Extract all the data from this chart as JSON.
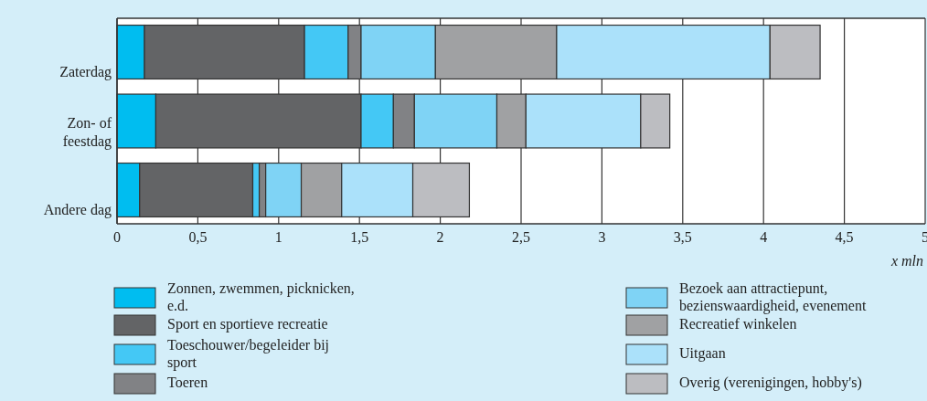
{
  "chart_data": {
    "type": "bar",
    "orientation": "horizontal",
    "stacked": true,
    "categories": [
      "Zaterdag",
      "Zon- of feestdag",
      "Andere dag"
    ],
    "xlabel": "x mln",
    "xlim": [
      0,
      5
    ],
    "xticks": [
      0,
      {
        "value": 0.5,
        "label": "0,5"
      },
      1,
      {
        "value": 1.5,
        "label": "1,5"
      },
      2,
      {
        "value": 2.5,
        "label": "2,5"
      },
      3,
      {
        "value": 3.5,
        "label": "3,5"
      },
      4,
      {
        "value": 4.5,
        "label": "4,5"
      },
      5
    ],
    "grid": "x",
    "legend": "bottom",
    "series": [
      {
        "name": "Zonnen, zwemmen, picknicken, e.d.",
        "color": "#00bdf0",
        "values": [
          0.17,
          0.24,
          0.14
        ]
      },
      {
        "name": "Sport en sportieve recreatie",
        "color": "#636466",
        "values": [
          0.99,
          1.27,
          0.7
        ]
      },
      {
        "name": "Toeschouwer/begeleider bij sport",
        "color": "#44c8f5",
        "values": [
          0.27,
          0.2,
          0.04
        ]
      },
      {
        "name": "Toeren",
        "color": "#818285",
        "values": [
          0.08,
          0.13,
          0.04
        ]
      },
      {
        "name": "Bezoek aan attractiepunt, bezienswaardigheid, evenement",
        "color": "#7fd3f5",
        "values": [
          0.46,
          0.51,
          0.22
        ]
      },
      {
        "name": "Recreatief winkelen",
        "color": "#a0a1a3",
        "values": [
          0.75,
          0.18,
          0.25
        ]
      },
      {
        "name": "Uitgaan",
        "color": "#abe1fa",
        "values": [
          1.32,
          0.71,
          0.44
        ]
      },
      {
        "name": "Overig (verenigingen, hobby's)",
        "color": "#bcbdc1",
        "values": [
          0.31,
          0.18,
          0.35
        ]
      }
    ]
  }
}
